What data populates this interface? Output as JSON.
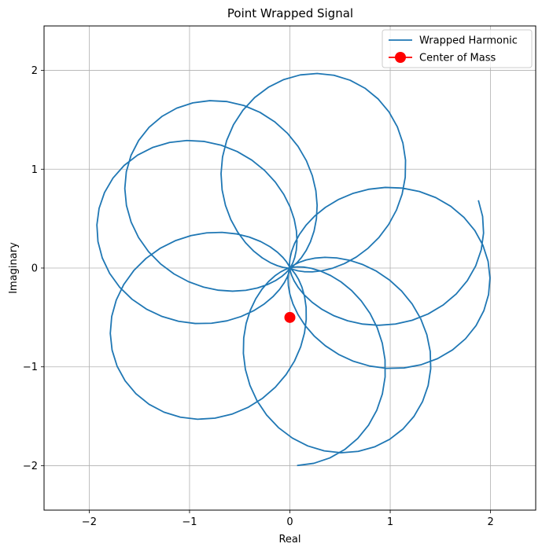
{
  "chart_data": {
    "type": "line",
    "title": "Point Wrapped Signal",
    "xlabel": "Real",
    "ylabel": "Imaginary",
    "xlim": [
      -2.45,
      2.45
    ],
    "ylim": [
      -2.45,
      2.45
    ],
    "xticks": [
      -2,
      -1,
      0,
      1,
      2
    ],
    "yticks": [
      -2,
      -1,
      0,
      1,
      2
    ],
    "xtick_labels": [
      "−2",
      "−1",
      "0",
      "1",
      "2"
    ],
    "ytick_labels": [
      "−2",
      "−1",
      "0",
      "1",
      "2"
    ],
    "grid": true,
    "legend_position": "top-right",
    "series": [
      {
        "name": "Wrapped Harmonic",
        "kind": "line",
        "color": "#1f77b4",
        "signal": {
          "offset": 1.0,
          "amplitude": 1.0,
          "signal_cycles": 7,
          "wrap_revolutions": 4.3,
          "samples": 320,
          "phase": 0.35
        }
      },
      {
        "name": "Center of Mass",
        "kind": "marker",
        "color": "#ff0000",
        "points": [
          [
            0.0,
            -0.5
          ]
        ]
      }
    ]
  }
}
